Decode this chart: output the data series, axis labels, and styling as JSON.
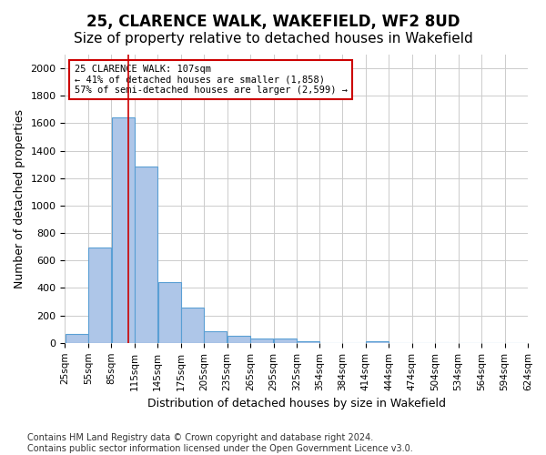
{
  "title": "25, CLARENCE WALK, WAKEFIELD, WF2 8UD",
  "subtitle": "Size of property relative to detached houses in Wakefield",
  "xlabel": "Distribution of detached houses by size in Wakefield",
  "ylabel": "Number of detached properties",
  "bar_color": "#aec6e8",
  "bar_edge_color": "#5a9fd4",
  "background_color": "#ffffff",
  "grid_color": "#cccccc",
  "annotation_line_color": "#cc0000",
  "annotation_box_color": "#cc0000",
  "annotation_text": "25 CLARENCE WALK: 107sqm\n← 41% of detached houses are smaller (1,858)\n57% of semi-detached houses are larger (2,599) →",
  "property_size": 107,
  "bins": [
    25,
    55,
    85,
    115,
    145,
    175,
    205,
    235,
    265,
    295,
    325,
    354,
    384,
    414,
    444,
    474,
    504,
    534,
    564,
    594,
    624
  ],
  "bin_labels": [
    "25sqm",
    "55sqm",
    "85sqm",
    "115sqm",
    "145sqm",
    "175sqm",
    "205sqm",
    "235sqm",
    "265sqm",
    "295sqm",
    "325sqm",
    "354sqm",
    "384sqm",
    "414sqm",
    "444sqm",
    "474sqm",
    "504sqm",
    "534sqm",
    "564sqm",
    "594sqm",
    "624sqm"
  ],
  "values": [
    65,
    695,
    1640,
    1285,
    445,
    255,
    85,
    50,
    35,
    30,
    15,
    0,
    0,
    15,
    0,
    0,
    0,
    0,
    0,
    0
  ],
  "ylim": [
    0,
    2100
  ],
  "yticks": [
    0,
    200,
    400,
    600,
    800,
    1000,
    1200,
    1400,
    1600,
    1800,
    2000
  ],
  "footnote": "Contains HM Land Registry data © Crown copyright and database right 2024.\nContains public sector information licensed under the Open Government Licence v3.0.",
  "title_fontsize": 12,
  "subtitle_fontsize": 11,
  "label_fontsize": 9,
  "tick_fontsize": 8,
  "footnote_fontsize": 7
}
